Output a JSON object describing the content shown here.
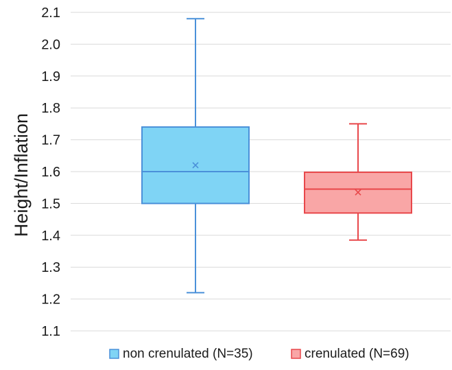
{
  "chart_data": {
    "type": "box",
    "title": "",
    "xlabel": "",
    "ylabel": "Height/Inflation",
    "ylim": [
      1.1,
      2.1
    ],
    "yticks": [
      1.1,
      1.2,
      1.3,
      1.4,
      1.5,
      1.6,
      1.7,
      1.8,
      1.9,
      2.0,
      2.1
    ],
    "ytick_labels": [
      "1.1",
      "1.2",
      "1.3",
      "1.4",
      "1.5",
      "1.6",
      "1.7",
      "1.8",
      "1.9",
      "2.0",
      "2.1"
    ],
    "grid": true,
    "legend_position": "bottom",
    "series": [
      {
        "name": "non crenulated (N=35)",
        "min": 1.22,
        "q1": 1.5,
        "median": 1.6,
        "q3": 1.74,
        "max": 2.08,
        "mean": 1.62,
        "fill": "#7fd4f5",
        "stroke": "#4a90d9",
        "mean_marker": "#4a90d9"
      },
      {
        "name": "crenulated (N=69)",
        "min": 1.385,
        "q1": 1.47,
        "median": 1.545,
        "q3": 1.598,
        "max": 1.75,
        "mean": 1.535,
        "fill": "#f9a6a6",
        "stroke": "#e8474a",
        "mean_marker": "#e8474a"
      }
    ]
  }
}
